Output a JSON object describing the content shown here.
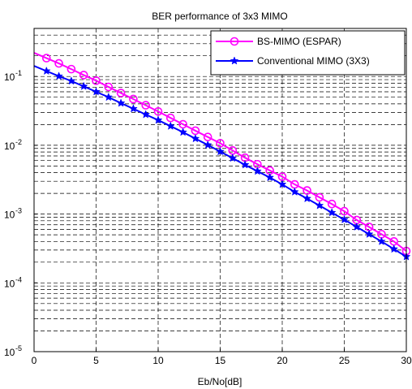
{
  "chart_data": {
    "type": "line",
    "title": "BER performance of 3x3 MIMO",
    "xlabel": "Eb/No[dB]",
    "ylabel": "",
    "xlim": [
      0,
      30
    ],
    "ylim": [
      1e-05,
      0.5
    ],
    "yscale": "log",
    "grid": true,
    "grid_style": "dashed",
    "legend_position": "top-right",
    "x_ticks": [
      "0",
      "5",
      "10",
      "15",
      "20",
      "25",
      "30"
    ],
    "y_ticks": [
      {
        "base": "10",
        "exp": "-5"
      },
      {
        "base": "10",
        "exp": "-4"
      },
      {
        "base": "10",
        "exp": "-3"
      },
      {
        "base": "10",
        "exp": "-2"
      },
      {
        "base": "10",
        "exp": "-1"
      }
    ],
    "x": [
      1,
      2,
      3,
      4,
      5,
      6,
      7,
      8,
      9,
      10,
      11,
      12,
      13,
      14,
      15,
      16,
      17,
      18,
      19,
      20,
      21,
      22,
      23,
      24,
      25,
      26,
      27,
      28,
      29,
      30
    ],
    "series": [
      {
        "name": "BS-MIMO (ESPAR)",
        "color": "#ff00ff",
        "marker": "circle",
        "values": [
          0.185,
          0.155,
          0.128,
          0.105,
          0.087,
          0.0705,
          0.0575,
          0.047,
          0.0382,
          0.031,
          0.025,
          0.0202,
          0.0163,
          0.0132,
          0.0107,
          0.0084,
          0.0066,
          0.0053,
          0.0043,
          0.0035,
          0.0027,
          0.0022,
          0.00175,
          0.0014,
          0.0011,
          0.00082,
          0.00065,
          0.00051,
          0.0004,
          0.00029
        ]
      },
      {
        "name": "Conventional MIMO (3X3)",
        "color": "#0000ff",
        "marker": "star",
        "values": [
          0.12,
          0.101,
          0.086,
          0.072,
          0.06,
          0.05,
          0.041,
          0.034,
          0.028,
          0.0232,
          0.019,
          0.0155,
          0.0125,
          0.0101,
          0.0081,
          0.0065,
          0.0052,
          0.0042,
          0.0034,
          0.0027,
          0.0021,
          0.00168,
          0.00133,
          0.00105,
          0.00083,
          0.00065,
          0.00051,
          0.0004,
          0.00031,
          0.00024
        ]
      }
    ]
  }
}
